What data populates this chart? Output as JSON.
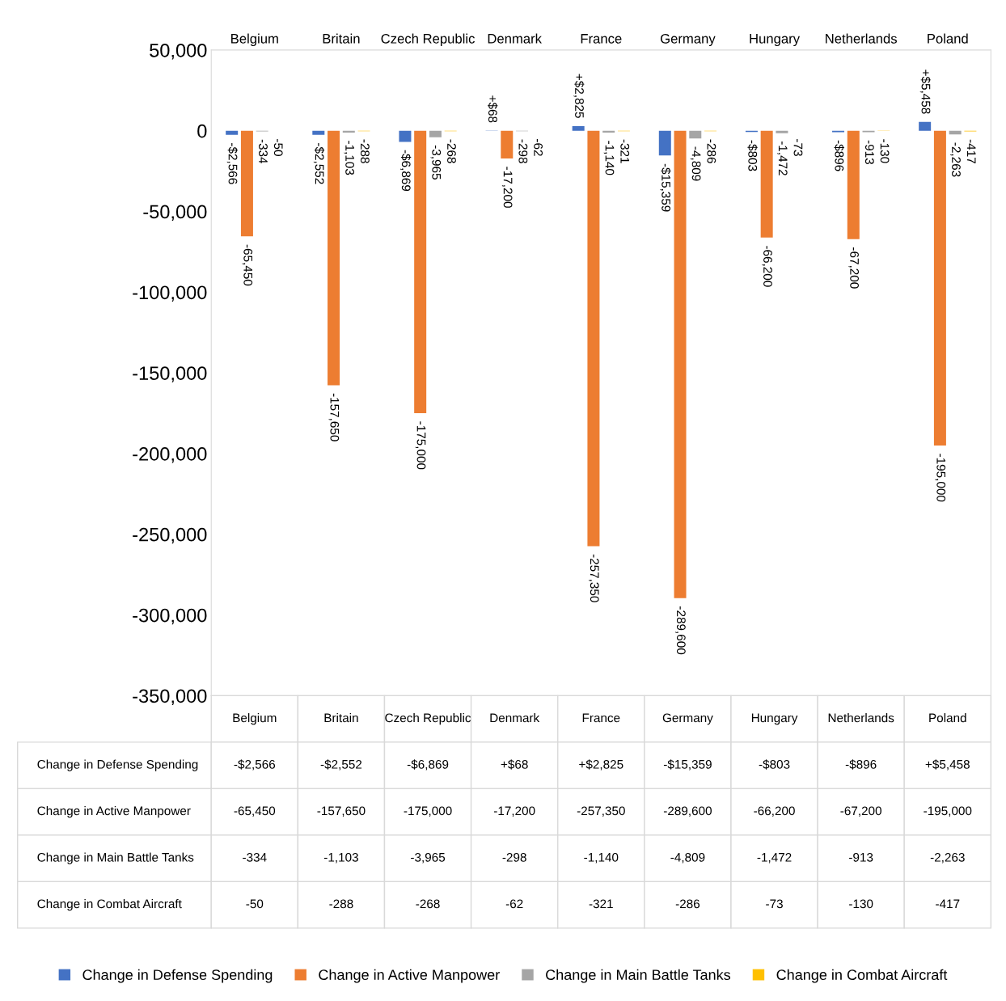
{
  "chart_data": {
    "type": "bar",
    "categories": [
      "Belgium",
      "Britain",
      "Czech Republic",
      "Denmark",
      "France",
      "Germany",
      "Hungary",
      "Netherlands",
      "Poland"
    ],
    "series": [
      {
        "name": "Change in Defense Spending",
        "color": "#4472c4",
        "values": [
          -2566,
          -2552,
          -6869,
          68,
          2825,
          -15359,
          -803,
          -896,
          5458
        ],
        "value_labels": [
          "-$2,566",
          "-$2,552",
          "-$6,869",
          "+$68",
          "+$2,825",
          "-$15,359",
          "-$803",
          "-$896",
          "+$5,458"
        ]
      },
      {
        "name": "Change in Active Manpower",
        "color": "#ed7d31",
        "values": [
          -65450,
          -157650,
          -175000,
          -17200,
          -257350,
          -289600,
          -66200,
          -67200,
          -195000
        ],
        "value_labels": [
          "-65,450",
          "-157,650",
          "-175,000",
          "-17,200",
          "-257,350",
          "-289,600",
          "-66,200",
          "-67,200",
          "-195,000"
        ]
      },
      {
        "name": "Change in Main Battle Tanks",
        "color": "#a5a5a5",
        "values": [
          -334,
          -1103,
          -3965,
          -298,
          -1140,
          -4809,
          -1472,
          -913,
          -2263
        ],
        "value_labels": [
          "-334",
          "-1,103",
          "-3,965",
          "-298",
          "-1,140",
          "-4,809",
          "-1,472",
          "-913",
          "-2,263"
        ]
      },
      {
        "name": "Change in Combat Aircraft",
        "color": "#ffc000",
        "values": [
          -50,
          -288,
          -268,
          -62,
          -321,
          -286,
          -73,
          -130,
          -417
        ],
        "value_labels": [
          "-50",
          "-288",
          "-268",
          "-62",
          "-321",
          "-286",
          "-73",
          "-130",
          "-417"
        ]
      }
    ],
    "ylim": [
      -350000,
      50000
    ],
    "yticks": [
      {
        "value": -350000,
        "label": "-350,000"
      },
      {
        "value": -300000,
        "label": "-300,000"
      },
      {
        "value": -250000,
        "label": "-250,000"
      },
      {
        "value": -200000,
        "label": "-200,000"
      },
      {
        "value": -150000,
        "label": "-150,000"
      },
      {
        "value": -100000,
        "label": "-100,000"
      },
      {
        "value": -50000,
        "label": "-50,000"
      },
      {
        "value": 0,
        "label": "0"
      },
      {
        "value": 50000,
        "label": "50,000"
      }
    ],
    "grid": false,
    "legend": "bottom"
  }
}
